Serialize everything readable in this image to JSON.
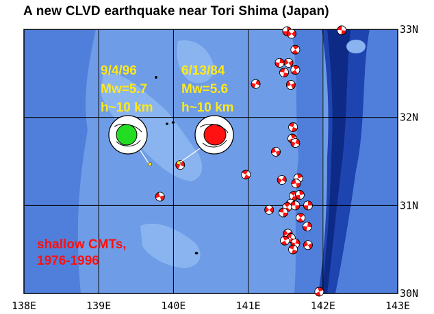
{
  "title": "A new CLVD earthquake near Tori Shima (Japan)",
  "lon_ticks": [
    "138E",
    "139E",
    "140E",
    "141E",
    "142E",
    "143E"
  ],
  "lat_ticks": [
    "33N",
    "32N",
    "31N",
    "30N"
  ],
  "extent": {
    "lon": [
      138,
      143
    ],
    "lat": [
      30,
      33
    ]
  },
  "events": [
    {
      "date": "9/4/96",
      "magnitude": "Mw=5.7",
      "depth": "h~10 km",
      "color": "#22dd22",
      "lon": 139.75,
      "lat": 31.46
    },
    {
      "date": "6/13/84",
      "magnitude": "Mw=5.6",
      "depth": "h~10 km",
      "color": "#ff1111",
      "lon": 140.05,
      "lat": 31.47
    }
  ],
  "legend": {
    "line1": "shallow CMTs,",
    "line2": "1976-1996",
    "color": "#ff1111"
  },
  "colors": {
    "ocean_shallow": "#8ab4f0",
    "ocean_mid": "#6e9ce6",
    "ocean_deep": "#4f7fdb",
    "trench": "#1e44b0",
    "trench_deep": "#0d2a86",
    "grid": "#000000"
  },
  "shallow_cmts": [
    [
      141.52,
      32.98
    ],
    [
      141.58,
      32.95
    ],
    [
      142.25,
      32.99
    ],
    [
      141.63,
      32.77
    ],
    [
      141.42,
      32.62
    ],
    [
      141.54,
      32.62
    ],
    [
      141.48,
      32.51
    ],
    [
      141.63,
      32.54
    ],
    [
      141.1,
      32.38
    ],
    [
      141.57,
      32.37
    ],
    [
      141.6,
      31.89
    ],
    [
      141.59,
      31.76
    ],
    [
      141.63,
      31.71
    ],
    [
      141.37,
      31.61
    ],
    [
      140.97,
      31.35
    ],
    [
      141.67,
      31.31
    ],
    [
      141.45,
      31.29
    ],
    [
      141.64,
      31.25
    ],
    [
      141.61,
      31.11
    ],
    [
      141.69,
      31.12
    ],
    [
      141.57,
      31.02
    ],
    [
      141.63,
      31.0
    ],
    [
      141.52,
      30.98
    ],
    [
      141.8,
      31.0
    ],
    [
      141.28,
      30.95
    ],
    [
      141.47,
      30.92
    ],
    [
      141.7,
      30.86
    ],
    [
      141.79,
      30.76
    ],
    [
      141.53,
      30.68
    ],
    [
      141.57,
      30.63
    ],
    [
      141.49,
      30.6
    ],
    [
      141.63,
      30.57
    ],
    [
      141.8,
      30.55
    ],
    [
      141.6,
      30.5
    ],
    [
      141.95,
      30.02
    ],
    [
      140.09,
      31.46
    ],
    [
      139.82,
      31.1
    ]
  ]
}
